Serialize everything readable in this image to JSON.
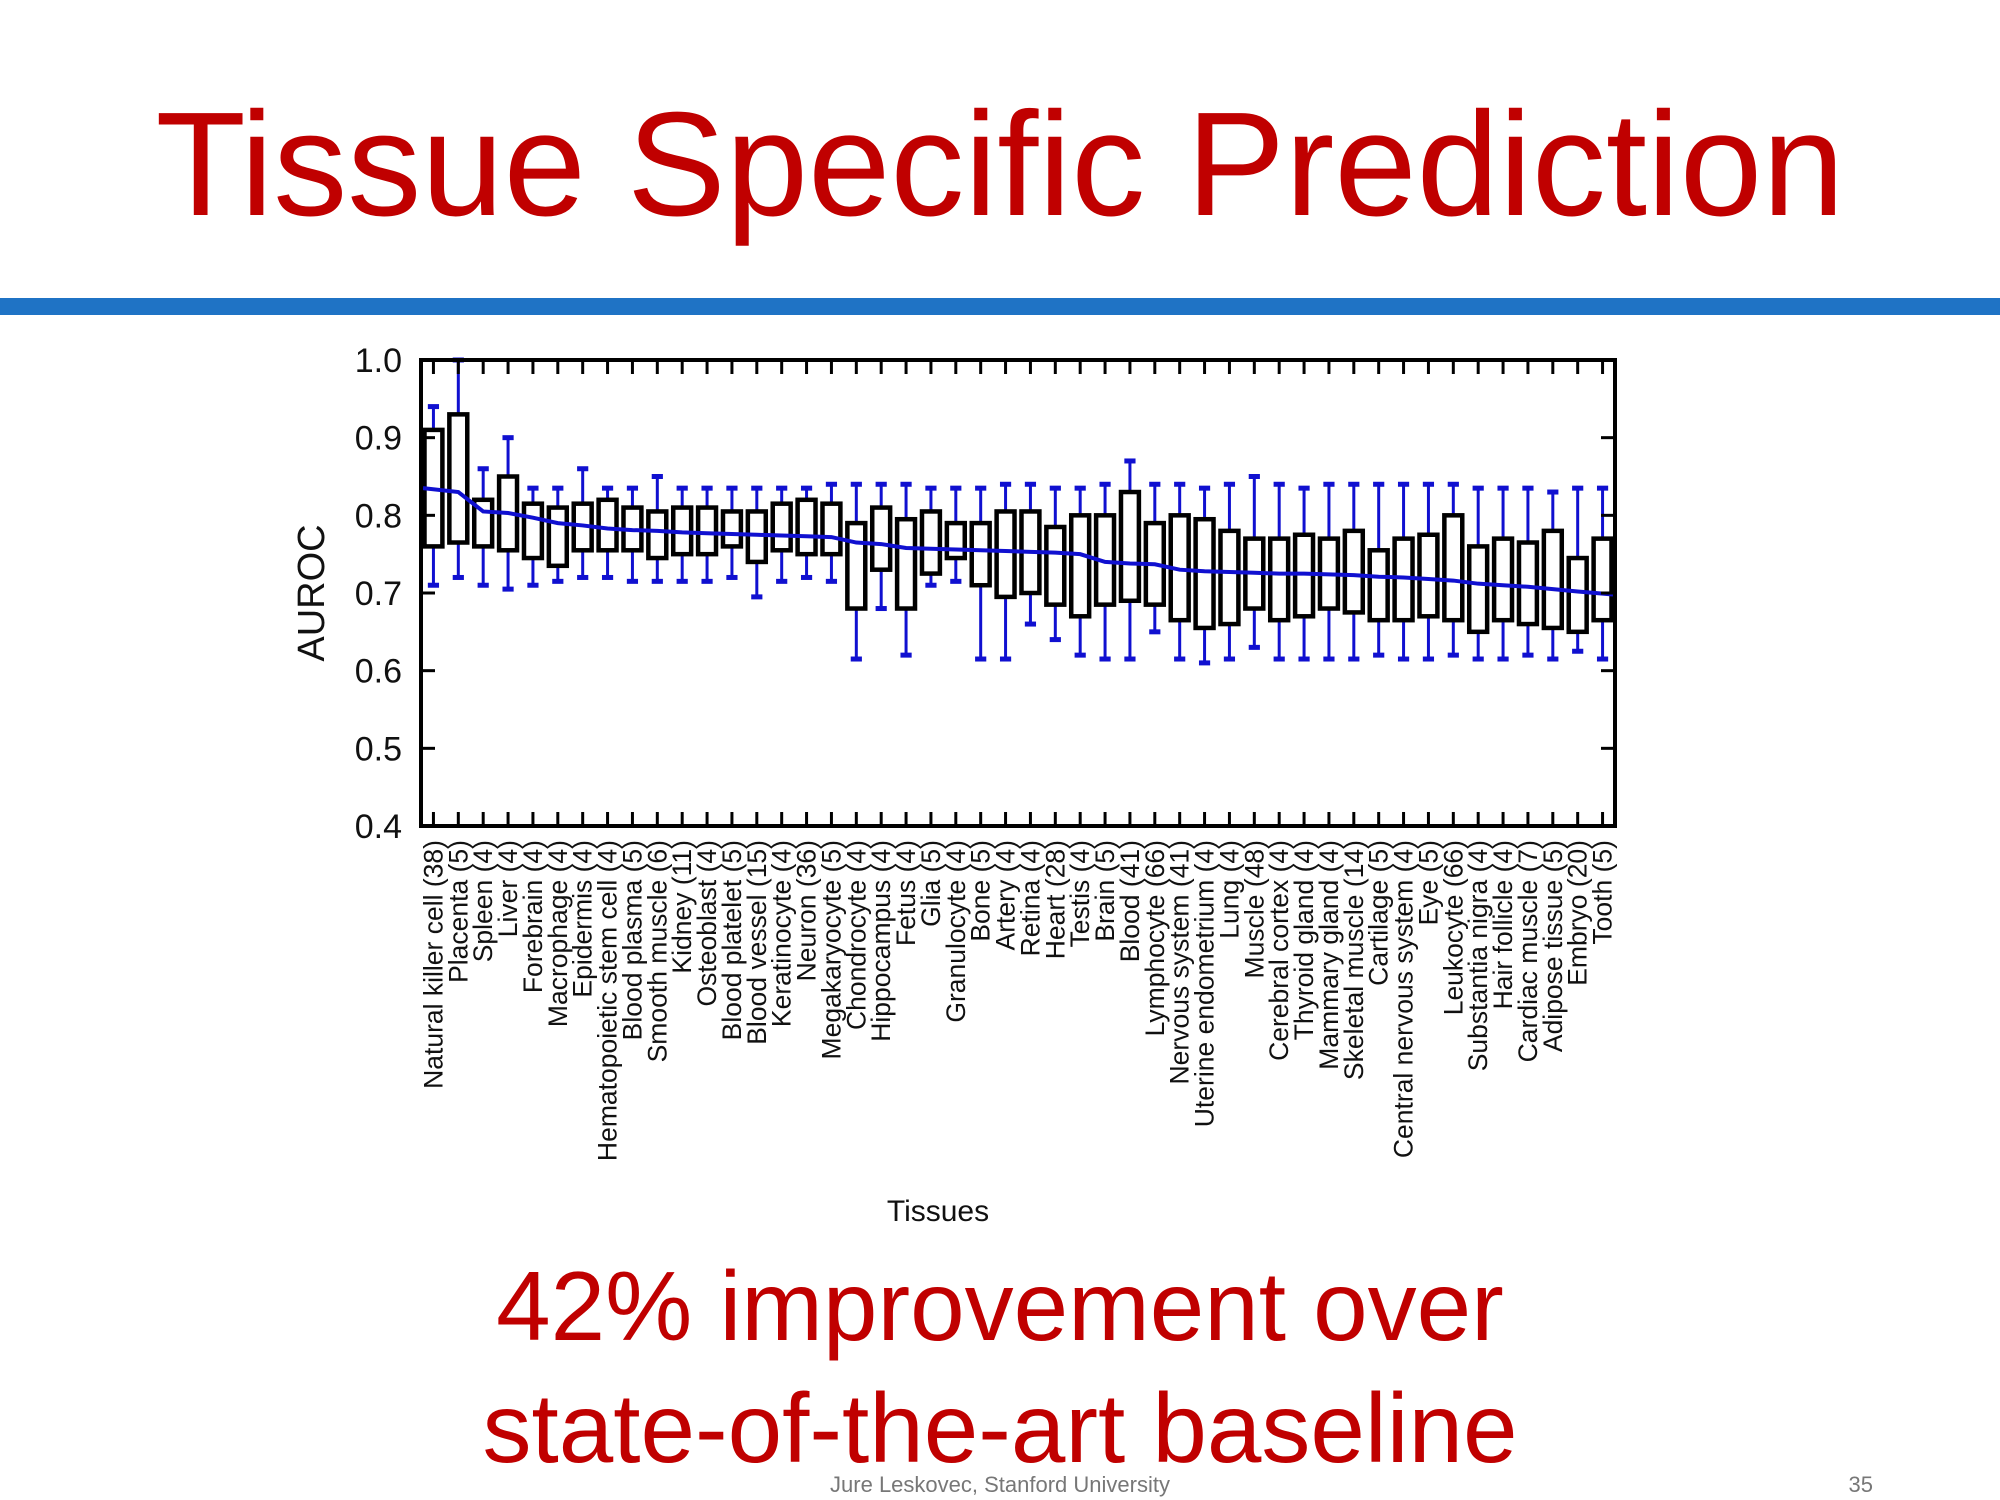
{
  "slide": {
    "title": "Tissue Specific Prediction",
    "subtitle_line1": "42% improvement over",
    "subtitle_line2": "state-of-the-art baseline",
    "footer": "Jure Leskovec, Stanford University",
    "page_number": "35"
  },
  "colors": {
    "title": "#c00000",
    "rule": "#1f73c5",
    "whisker": "#1010d0",
    "median_line": "#1010d0",
    "box_edge": "#000000"
  },
  "chart_data": {
    "type": "boxplot",
    "xlabel": "Tissues",
    "ylabel": "AUROC",
    "ylim": [
      0.4,
      1.0
    ],
    "yticks": [
      "0.4",
      "0.5",
      "0.6",
      "0.7",
      "0.8",
      "0.9",
      "1.0"
    ],
    "grid": false,
    "categories": [
      "Natural killer cell (38)",
      "Placenta (5)",
      "Spleen (4)",
      "Liver (4)",
      "Forebrain (4)",
      "Macrophage (4)",
      "Epidermis (4)",
      "Hematopoietic stem cell (4)",
      "Blood plasma (5)",
      "Smooth muscle (6)",
      "Kidney (11)",
      "Osteoblast (4)",
      "Blood platelet (5)",
      "Blood vessel (15)",
      "Keratinocyte (4)",
      "Neuron (36)",
      "Megakaryocyte (5)",
      "Chondrocyte (4)",
      "Hippocampus (4)",
      "Fetus (4)",
      "Glia (5)",
      "Granulocyte (4)",
      "Bone (5)",
      "Artery (4)",
      "Retina (4)",
      "Heart (28)",
      "Testis (4)",
      "Brain (5)",
      "Blood (41)",
      "Lymphocyte (66)",
      "Nervous system (41)",
      "Uterine endometrium (4)",
      "Lung (4)",
      "Muscle (48)",
      "Cerebral cortex (4)",
      "Thyroid gland (4)",
      "Mammary gland (4)",
      "Skeletal muscle (14)",
      "Cartilage (5)",
      "Central nervous system (4)",
      "Eye (5)",
      "Leukocyte (66)",
      "Substantia nigra (4)",
      "Hair follicle (4)",
      "Cardiac muscle (7)",
      "Adipose tissue (5)",
      "Embryo (20)",
      "Tooth (5)"
    ],
    "boxes": [
      {
        "whisker_low": 0.71,
        "q1": 0.76,
        "q3": 0.91,
        "whisker_high": 0.94
      },
      {
        "whisker_low": 0.72,
        "q1": 0.765,
        "q3": 0.93,
        "whisker_high": 1.0
      },
      {
        "whisker_low": 0.71,
        "q1": 0.76,
        "q3": 0.82,
        "whisker_high": 0.86
      },
      {
        "whisker_low": 0.705,
        "q1": 0.755,
        "q3": 0.85,
        "whisker_high": 0.9
      },
      {
        "whisker_low": 0.71,
        "q1": 0.745,
        "q3": 0.815,
        "whisker_high": 0.835
      },
      {
        "whisker_low": 0.715,
        "q1": 0.735,
        "q3": 0.81,
        "whisker_high": 0.835
      },
      {
        "whisker_low": 0.72,
        "q1": 0.755,
        "q3": 0.815,
        "whisker_high": 0.86
      },
      {
        "whisker_low": 0.72,
        "q1": 0.755,
        "q3": 0.82,
        "whisker_high": 0.835
      },
      {
        "whisker_low": 0.715,
        "q1": 0.755,
        "q3": 0.81,
        "whisker_high": 0.835
      },
      {
        "whisker_low": 0.715,
        "q1": 0.745,
        "q3": 0.805,
        "whisker_high": 0.85
      },
      {
        "whisker_low": 0.715,
        "q1": 0.75,
        "q3": 0.81,
        "whisker_high": 0.835
      },
      {
        "whisker_low": 0.715,
        "q1": 0.75,
        "q3": 0.81,
        "whisker_high": 0.835
      },
      {
        "whisker_low": 0.72,
        "q1": 0.76,
        "q3": 0.805,
        "whisker_high": 0.835
      },
      {
        "whisker_low": 0.695,
        "q1": 0.74,
        "q3": 0.805,
        "whisker_high": 0.835
      },
      {
        "whisker_low": 0.715,
        "q1": 0.755,
        "q3": 0.815,
        "whisker_high": 0.835
      },
      {
        "whisker_low": 0.72,
        "q1": 0.75,
        "q3": 0.82,
        "whisker_high": 0.835
      },
      {
        "whisker_low": 0.715,
        "q1": 0.75,
        "q3": 0.815,
        "whisker_high": 0.84
      },
      {
        "whisker_low": 0.615,
        "q1": 0.68,
        "q3": 0.79,
        "whisker_high": 0.84
      },
      {
        "whisker_low": 0.68,
        "q1": 0.73,
        "q3": 0.81,
        "whisker_high": 0.84
      },
      {
        "whisker_low": 0.62,
        "q1": 0.68,
        "q3": 0.795,
        "whisker_high": 0.84
      },
      {
        "whisker_low": 0.71,
        "q1": 0.725,
        "q3": 0.805,
        "whisker_high": 0.835
      },
      {
        "whisker_low": 0.715,
        "q1": 0.745,
        "q3": 0.79,
        "whisker_high": 0.835
      },
      {
        "whisker_low": 0.615,
        "q1": 0.71,
        "q3": 0.79,
        "whisker_high": 0.835
      },
      {
        "whisker_low": 0.615,
        "q1": 0.695,
        "q3": 0.805,
        "whisker_high": 0.84
      },
      {
        "whisker_low": 0.66,
        "q1": 0.7,
        "q3": 0.805,
        "whisker_high": 0.84
      },
      {
        "whisker_low": 0.64,
        "q1": 0.685,
        "q3": 0.785,
        "whisker_high": 0.835
      },
      {
        "whisker_low": 0.62,
        "q1": 0.67,
        "q3": 0.8,
        "whisker_high": 0.835
      },
      {
        "whisker_low": 0.615,
        "q1": 0.685,
        "q3": 0.8,
        "whisker_high": 0.84
      },
      {
        "whisker_low": 0.615,
        "q1": 0.69,
        "q3": 0.83,
        "whisker_high": 0.87
      },
      {
        "whisker_low": 0.65,
        "q1": 0.685,
        "q3": 0.79,
        "whisker_high": 0.84
      },
      {
        "whisker_low": 0.615,
        "q1": 0.665,
        "q3": 0.8,
        "whisker_high": 0.84
      },
      {
        "whisker_low": 0.61,
        "q1": 0.655,
        "q3": 0.795,
        "whisker_high": 0.835
      },
      {
        "whisker_low": 0.615,
        "q1": 0.66,
        "q3": 0.78,
        "whisker_high": 0.84
      },
      {
        "whisker_low": 0.63,
        "q1": 0.68,
        "q3": 0.77,
        "whisker_high": 0.85
      },
      {
        "whisker_low": 0.615,
        "q1": 0.665,
        "q3": 0.77,
        "whisker_high": 0.84
      },
      {
        "whisker_low": 0.615,
        "q1": 0.67,
        "q3": 0.775,
        "whisker_high": 0.835
      },
      {
        "whisker_low": 0.615,
        "q1": 0.68,
        "q3": 0.77,
        "whisker_high": 0.84
      },
      {
        "whisker_low": 0.615,
        "q1": 0.675,
        "q3": 0.78,
        "whisker_high": 0.84
      },
      {
        "whisker_low": 0.62,
        "q1": 0.665,
        "q3": 0.755,
        "whisker_high": 0.84
      },
      {
        "whisker_low": 0.615,
        "q1": 0.665,
        "q3": 0.77,
        "whisker_high": 0.84
      },
      {
        "whisker_low": 0.615,
        "q1": 0.67,
        "q3": 0.775,
        "whisker_high": 0.84
      },
      {
        "whisker_low": 0.62,
        "q1": 0.665,
        "q3": 0.8,
        "whisker_high": 0.84
      },
      {
        "whisker_low": 0.615,
        "q1": 0.65,
        "q3": 0.76,
        "whisker_high": 0.835
      },
      {
        "whisker_low": 0.615,
        "q1": 0.665,
        "q3": 0.77,
        "whisker_high": 0.835
      },
      {
        "whisker_low": 0.62,
        "q1": 0.66,
        "q3": 0.765,
        "whisker_high": 0.835
      },
      {
        "whisker_low": 0.615,
        "q1": 0.655,
        "q3": 0.78,
        "whisker_high": 0.83
      },
      {
        "whisker_low": 0.625,
        "q1": 0.65,
        "q3": 0.745,
        "whisker_high": 0.835
      },
      {
        "whisker_low": 0.615,
        "q1": 0.665,
        "q3": 0.77,
        "whisker_high": 0.835
      }
    ],
    "trend_line": [
      0.835,
      0.83,
      0.805,
      0.803,
      0.797,
      0.79,
      0.787,
      0.783,
      0.781,
      0.78,
      0.778,
      0.777,
      0.776,
      0.775,
      0.774,
      0.773,
      0.772,
      0.765,
      0.763,
      0.758,
      0.757,
      0.756,
      0.755,
      0.754,
      0.753,
      0.752,
      0.75,
      0.74,
      0.738,
      0.737,
      0.73,
      0.728,
      0.727,
      0.726,
      0.725,
      0.725,
      0.724,
      0.723,
      0.721,
      0.72,
      0.718,
      0.716,
      0.712,
      0.71,
      0.708,
      0.705,
      0.702,
      0.698
    ]
  }
}
